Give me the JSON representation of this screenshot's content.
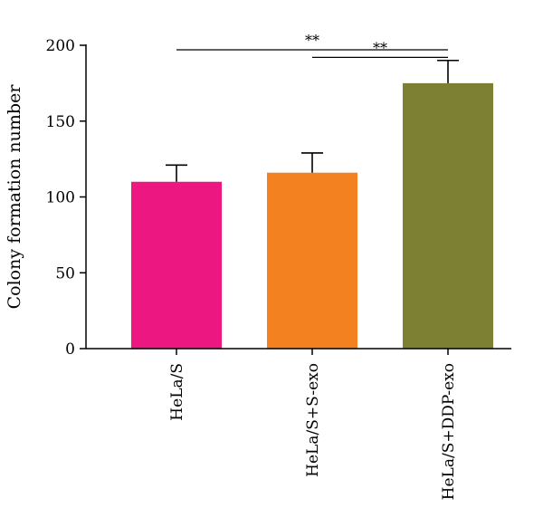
{
  "chart_data": {
    "type": "bar",
    "title": "",
    "xlabel": "",
    "ylabel": "Colony formation number",
    "ylim": [
      0,
      200
    ],
    "yticks": [
      0,
      50,
      100,
      150,
      200
    ],
    "grid": false,
    "categories": [
      "HeLa/S",
      "HeLa/S+S-exo",
      "HeLa/S+DDP-exo"
    ],
    "values": [
      110,
      116,
      175
    ],
    "errors": [
      11,
      13,
      15
    ],
    "colors": [
      "#ec1780",
      "#f48120",
      "#7d7f33"
    ],
    "significance": [
      {
        "from": 0,
        "to": 2,
        "level": 197,
        "label": "**"
      },
      {
        "from": 1,
        "to": 2,
        "level": 192,
        "label": "**"
      }
    ]
  }
}
